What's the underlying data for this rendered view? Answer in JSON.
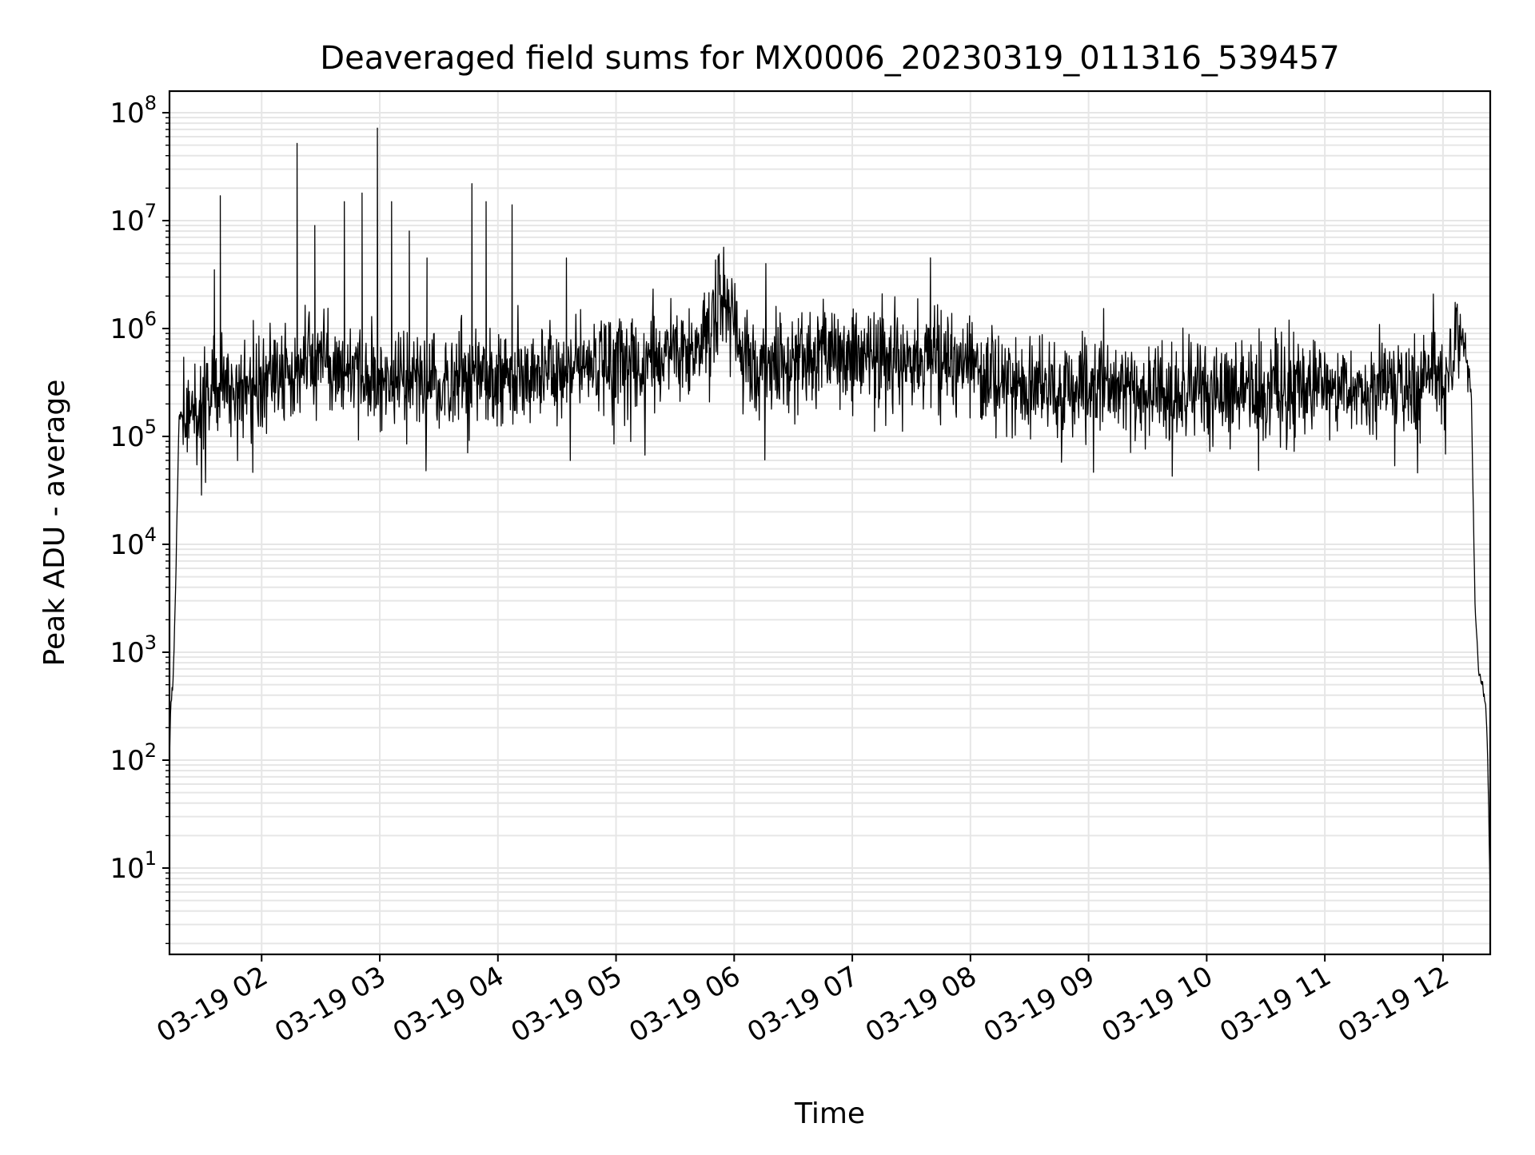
{
  "chart_data": {
    "type": "line",
    "title": "Deaveraged field sums for MX0006_20230319_011316_539457",
    "xlabel": "Time",
    "ylabel": "Peak ADU - average",
    "yscale": "log",
    "ylim_exponent": [
      0.2,
      8.2
    ],
    "xlim_hours": [
      1.22,
      12.4
    ],
    "grid": true,
    "line_color": "#000000",
    "grid_color": "#e6e6e6",
    "x_ticks": [
      {
        "hour": 2,
        "label": "03-19 02"
      },
      {
        "hour": 3,
        "label": "03-19 03"
      },
      {
        "hour": 4,
        "label": "03-19 04"
      },
      {
        "hour": 5,
        "label": "03-19 05"
      },
      {
        "hour": 6,
        "label": "03-19 06"
      },
      {
        "hour": 7,
        "label": "03-19 07"
      },
      {
        "hour": 8,
        "label": "03-19 08"
      },
      {
        "hour": 9,
        "label": "03-19 09"
      },
      {
        "hour": 10,
        "label": "03-19 10"
      },
      {
        "hour": 11,
        "label": "03-19 11"
      },
      {
        "hour": 12,
        "label": "03-19 12"
      }
    ],
    "y_ticks": [
      {
        "exp": 1,
        "base": "10",
        "sup": "1"
      },
      {
        "exp": 2,
        "base": "10",
        "sup": "2"
      },
      {
        "exp": 3,
        "base": "10",
        "sup": "3"
      },
      {
        "exp": 4,
        "base": "10",
        "sup": "4"
      },
      {
        "exp": 5,
        "base": "10",
        "sup": "5"
      },
      {
        "exp": 6,
        "base": "10",
        "sup": "6"
      },
      {
        "exp": 7,
        "base": "10",
        "sup": "7"
      },
      {
        "exp": 8,
        "base": "10",
        "sup": "8"
      }
    ],
    "series": [
      {
        "name": "Peak ADU - average",
        "x_hours": [
          1.22,
          1.23,
          1.25,
          1.27,
          1.3,
          1.35,
          1.4,
          1.5,
          1.6,
          1.7,
          1.8,
          1.9,
          2.0,
          2.1,
          2.2,
          2.3,
          2.4,
          2.5,
          2.6,
          2.7,
          2.8,
          2.9,
          3.0,
          3.1,
          3.2,
          3.3,
          3.4,
          3.5,
          3.6,
          3.7,
          3.8,
          3.9,
          4.0,
          4.1,
          4.2,
          4.3,
          4.4,
          4.5,
          4.6,
          4.7,
          4.8,
          4.9,
          5.0,
          5.2,
          5.4,
          5.6,
          5.75,
          5.85,
          5.9,
          5.95,
          6.0,
          6.1,
          6.2,
          6.4,
          6.6,
          6.8,
          7.0,
          7.2,
          7.4,
          7.6,
          7.8,
          8.0,
          8.3,
          8.6,
          9.0,
          9.4,
          9.8,
          10.2,
          10.6,
          11.0,
          11.4,
          11.8,
          12.0,
          12.1,
          12.15,
          12.2,
          12.24,
          12.27,
          12.3,
          12.33,
          12.36,
          12.38,
          12.4
        ],
        "y": [
          100,
          320,
          500,
          3000,
          150000,
          180000,
          170000,
          200000,
          250000,
          300000,
          280000,
          320000,
          300000,
          350000,
          380000,
          400000,
          500000,
          600000,
          450000,
          400000,
          380000,
          360000,
          350000,
          300000,
          330000,
          340000,
          300000,
          320000,
          300000,
          360000,
          380000,
          340000,
          400000,
          420000,
          400000,
          450000,
          420000,
          400000,
          380000,
          420000,
          450000,
          470000,
          500000,
          450000,
          480000,
          550000,
          700000,
          1500000,
          2000000,
          1700000,
          800000,
          500000,
          450000,
          500000,
          550000,
          600000,
          560000,
          500000,
          540000,
          600000,
          520000,
          450000,
          350000,
          300000,
          280000,
          270000,
          260000,
          270000,
          280000,
          290000,
          300000,
          320000,
          330000,
          600000,
          850000,
          700000,
          250000,
          3000,
          700,
          500,
          350,
          100,
          5
        ]
      }
    ],
    "spikes": [
      {
        "x_hour": 1.6,
        "y": 3500000
      },
      {
        "x_hour": 1.65,
        "y": 17000000
      },
      {
        "x_hour": 2.3,
        "y": 52000000
      },
      {
        "x_hour": 2.45,
        "y": 9000000
      },
      {
        "x_hour": 2.7,
        "y": 15000000
      },
      {
        "x_hour": 2.85,
        "y": 18000000
      },
      {
        "x_hour": 2.98,
        "y": 72000000
      },
      {
        "x_hour": 3.1,
        "y": 15000000
      },
      {
        "x_hour": 3.25,
        "y": 8000000
      },
      {
        "x_hour": 3.4,
        "y": 4500000
      },
      {
        "x_hour": 3.78,
        "y": 22000000
      },
      {
        "x_hour": 3.9,
        "y": 15000000
      },
      {
        "x_hour": 4.12,
        "y": 14000000
      },
      {
        "x_hour": 4.58,
        "y": 4500000
      },
      {
        "x_hour": 4.7,
        "y": 1500000
      }
    ]
  }
}
